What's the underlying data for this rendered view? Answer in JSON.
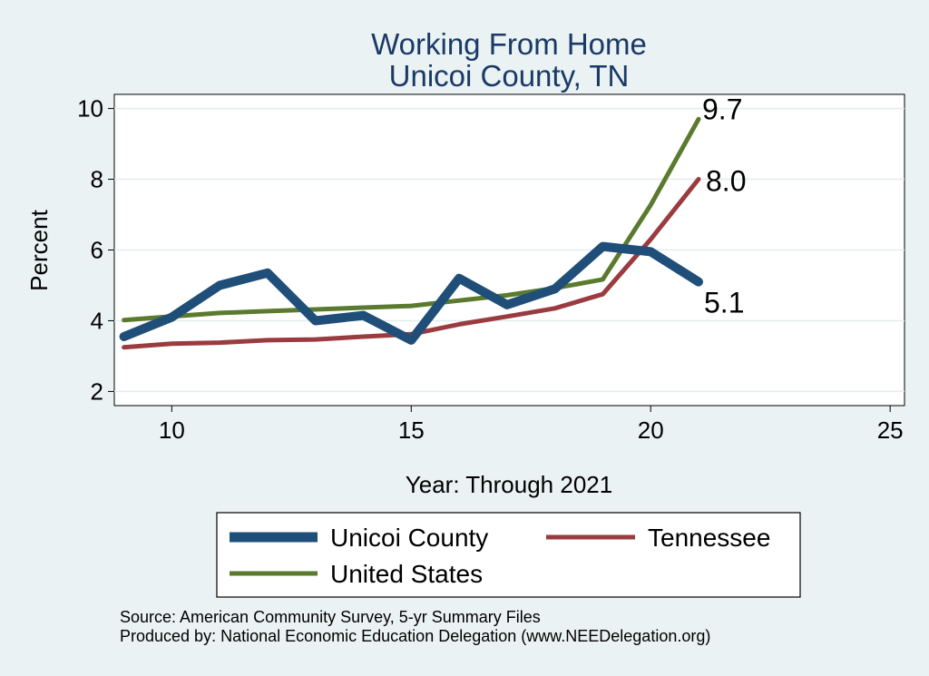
{
  "chart_data": {
    "type": "line",
    "title": [
      "Working From Home",
      "Unicoi County, TN"
    ],
    "xlabel": "Year: Through 2021",
    "ylabel": "Percent",
    "xlim": [
      8.8,
      25.3
    ],
    "ylim": [
      1.6,
      10.4
    ],
    "xticks": [
      10,
      15,
      20,
      25
    ],
    "yticks": [
      2,
      4,
      6,
      8,
      10
    ],
    "grid": true,
    "legend_position": "bottom",
    "series": [
      {
        "name": "Unicoi County",
        "color": "#1f4e79",
        "x": [
          9,
          10,
          11,
          12,
          13,
          14,
          15,
          16,
          17,
          18,
          19,
          20,
          21
        ],
        "values": [
          3.55,
          4.1,
          5.0,
          5.35,
          4.0,
          4.15,
          3.45,
          5.2,
          4.45,
          4.9,
          6.1,
          5.95,
          5.1
        ],
        "end_label": "5.1"
      },
      {
        "name": "Tennessee",
        "color": "#9a3b3f",
        "x": [
          9,
          10,
          11,
          12,
          13,
          14,
          15,
          16,
          17,
          18,
          19,
          20,
          21
        ],
        "values": [
          3.25,
          3.35,
          3.38,
          3.45,
          3.47,
          3.55,
          3.62,
          3.9,
          4.12,
          4.35,
          4.75,
          6.3,
          8.0
        ],
        "end_label": "8.0"
      },
      {
        "name": "United States",
        "color": "#5a7a2e",
        "x": [
          9,
          10,
          11,
          12,
          13,
          14,
          15,
          16,
          17,
          18,
          19,
          20,
          21
        ],
        "values": [
          4.02,
          4.12,
          4.22,
          4.27,
          4.32,
          4.37,
          4.42,
          4.57,
          4.72,
          4.92,
          5.17,
          7.27,
          9.7
        ],
        "end_label": "9.7"
      }
    ]
  },
  "source_note": "Source: American Community Survey, 5-yr Summary Files",
  "produced_note": "Produced by: National Economic Education Delegation (www.NEEDelegation.org)"
}
